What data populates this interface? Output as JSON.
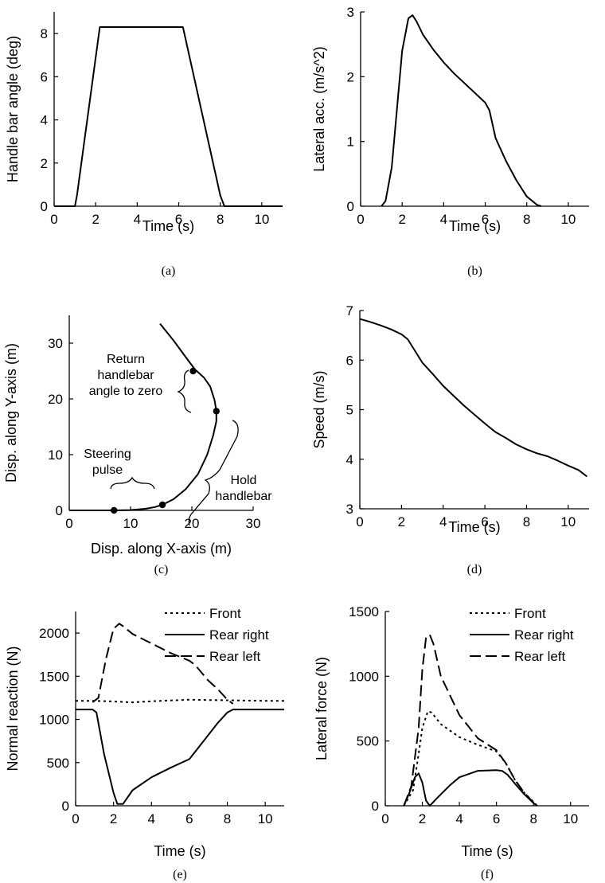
{
  "chart_data": [
    {
      "id": "a",
      "type": "line",
      "caption": "(a)",
      "xlabel": "Time (s)",
      "ylabel": "Handle bar angle (deg)",
      "xlim": [
        0,
        11
      ],
      "ylim": [
        0,
        9
      ],
      "xticks": [
        0,
        2,
        4,
        6,
        8,
        10
      ],
      "yticks": [
        0,
        2,
        4,
        6,
        8
      ],
      "series": [
        {
          "style": "solid",
          "x": [
            0,
            1.0,
            1.1,
            2.2,
            6.2,
            8.0,
            8.2,
            11
          ],
          "y": [
            0,
            0,
            0.5,
            8.3,
            8.3,
            0.5,
            0,
            0
          ]
        }
      ]
    },
    {
      "id": "b",
      "type": "line",
      "caption": "(b)",
      "xlabel": "Time (s)",
      "ylabel": "Lateral acc. (m/s^2)",
      "xlim": [
        0,
        11
      ],
      "ylim": [
        0,
        3
      ],
      "xticks": [
        0,
        2,
        4,
        6,
        8,
        10
      ],
      "yticks": [
        0,
        1,
        2,
        3
      ],
      "series": [
        {
          "style": "solid",
          "x": [
            1.0,
            1.2,
            1.5,
            2.0,
            2.3,
            2.5,
            2.7,
            3.0,
            3.5,
            4.0,
            4.5,
            5.0,
            5.5,
            6.0,
            6.2,
            6.5,
            7.0,
            7.5,
            8.0,
            8.5,
            8.7
          ],
          "y": [
            0,
            0.08,
            0.6,
            2.4,
            2.9,
            2.95,
            2.85,
            2.65,
            2.42,
            2.22,
            2.05,
            1.9,
            1.75,
            1.6,
            1.48,
            1.05,
            0.7,
            0.4,
            0.15,
            0.02,
            0
          ]
        }
      ]
    },
    {
      "id": "c",
      "type": "scatter",
      "caption": "(c)",
      "xlabel": "Disp. along X-axis (m)",
      "ylabel": "Disp. along Y-axis (m)",
      "xlim": [
        0,
        30
      ],
      "ylim": [
        0,
        35
      ],
      "xticks": [
        0,
        10,
        20,
        30
      ],
      "yticks": [
        0,
        10,
        20,
        30
      ],
      "series": [
        {
          "style": "solid",
          "x": [
            0,
            7.3,
            10,
            12.5,
            14,
            15.2,
            17,
            19,
            21,
            22.5,
            23.5,
            24,
            24,
            23.7,
            23,
            22,
            20.5,
            19,
            17,
            14.8
          ],
          "y": [
            0,
            0,
            0.05,
            0.3,
            0.6,
            1.0,
            2.0,
            3.8,
            6.5,
            10,
            13.5,
            16,
            17.8,
            19.8,
            22.2,
            23.8,
            25.3,
            27.5,
            30.5,
            33.5
          ]
        }
      ],
      "markers": [
        {
          "x": 7.3,
          "y": 0
        },
        {
          "x": 15.2,
          "y": 1.0
        },
        {
          "x": 24,
          "y": 17.8
        },
        {
          "x": 20.2,
          "y": 25
        }
      ],
      "annotations": [
        {
          "lines": [
            "Return",
            "handlebar",
            "angle to zero"
          ]
        },
        {
          "lines": [
            "Steering",
            "pulse"
          ]
        },
        {
          "lines": [
            "Hold",
            "handlebar"
          ]
        }
      ]
    },
    {
      "id": "d",
      "type": "line",
      "caption": "(d)",
      "xlabel": "Time (s)",
      "ylabel": "Speed (m/s)",
      "xlim": [
        0,
        11
      ],
      "ylim": [
        3,
        7
      ],
      "xticks": [
        0,
        2,
        4,
        6,
        8,
        10
      ],
      "yticks": [
        3,
        4,
        5,
        6,
        7
      ],
      "series": [
        {
          "style": "solid",
          "x": [
            0,
            0.5,
            1.0,
            1.5,
            2.0,
            2.3,
            2.7,
            3.0,
            3.5,
            4.0,
            4.5,
            5.0,
            5.5,
            6.0,
            6.5,
            7.0,
            7.5,
            8.0,
            8.5,
            9.0,
            9.5,
            10.0,
            10.5,
            10.9
          ],
          "y": [
            6.83,
            6.77,
            6.7,
            6.62,
            6.52,
            6.42,
            6.15,
            5.95,
            5.72,
            5.48,
            5.28,
            5.08,
            4.9,
            4.72,
            4.55,
            4.43,
            4.3,
            4.2,
            4.12,
            4.06,
            3.97,
            3.87,
            3.78,
            3.65
          ]
        }
      ]
    },
    {
      "id": "e",
      "type": "line",
      "caption": "(e)",
      "xlabel": "Time (s)",
      "ylabel": "Normal reaction (N)",
      "xlim": [
        0,
        11
      ],
      "ylim": [
        0,
        2250
      ],
      "xticks": [
        0,
        2,
        4,
        6,
        8,
        10
      ],
      "yticks": [
        0,
        500,
        1000,
        1500,
        2000
      ],
      "legend_position": "top-right",
      "series": [
        {
          "name": "Front",
          "style": "dotted",
          "x": [
            0,
            1.0,
            2.0,
            3.0,
            4.0,
            5.0,
            6.0,
            7.0,
            8.0,
            9.0,
            10.0,
            11.0
          ],
          "y": [
            1215,
            1215,
            1208,
            1198,
            1210,
            1220,
            1228,
            1225,
            1222,
            1218,
            1215,
            1215
          ]
        },
        {
          "name": "Rear right",
          "style": "solid",
          "x": [
            0,
            0.9,
            1.1,
            1.5,
            2.0,
            2.2,
            2.5,
            3.0,
            4.0,
            5.0,
            6.0,
            6.5,
            7.0,
            7.5,
            8.0,
            8.3,
            9.0,
            11.0
          ],
          "y": [
            1115,
            1115,
            1080,
            600,
            150,
            20,
            20,
            180,
            330,
            440,
            540,
            680,
            820,
            960,
            1080,
            1115,
            1115,
            1115
          ]
        },
        {
          "name": "Rear left",
          "style": "dashed",
          "x": [
            0.9,
            1.2,
            1.6,
            2.0,
            2.3,
            2.5,
            3.0,
            4.0,
            5.0,
            6.0,
            6.3,
            7.0,
            7.5,
            8.0,
            8.3
          ],
          "y": [
            1200,
            1250,
            1700,
            2050,
            2110,
            2080,
            1990,
            1880,
            1770,
            1680,
            1630,
            1450,
            1350,
            1230,
            1180
          ]
        }
      ]
    },
    {
      "id": "f",
      "type": "line",
      "caption": "(f)",
      "xlabel": "Time (s)",
      "ylabel": "Lateral force (N)",
      "xlim": [
        0,
        11
      ],
      "ylim": [
        0,
        1500
      ],
      "xticks": [
        0,
        2,
        4,
        6,
        8,
        10
      ],
      "yticks": [
        0,
        500,
        1000,
        1500
      ],
      "legend_position": "top-right",
      "series": [
        {
          "name": "Front",
          "style": "dotted",
          "x": [
            1.0,
            1.5,
            1.8,
            2.0,
            2.3,
            2.5,
            3.0,
            4.0,
            5.0,
            6.0,
            6.5,
            7.0,
            7.5,
            8.0,
            8.2
          ],
          "y": [
            0,
            120,
            400,
            600,
            730,
            720,
            630,
            530,
            470,
            420,
            330,
            200,
            100,
            30,
            0
          ]
        },
        {
          "name": "Rear right",
          "style": "solid",
          "x": [
            1.0,
            1.3,
            1.6,
            1.8,
            2.0,
            2.2,
            2.4,
            2.8,
            3.5,
            4.0,
            5.0,
            6.0,
            6.3,
            6.6,
            7.0,
            7.5,
            8.0,
            8.2
          ],
          "y": [
            0,
            100,
            220,
            250,
            180,
            40,
            0,
            60,
            160,
            220,
            270,
            275,
            270,
            240,
            170,
            90,
            20,
            0
          ]
        },
        {
          "name": "Rear left",
          "style": "dashed",
          "x": [
            1.0,
            1.4,
            1.8,
            2.0,
            2.2,
            2.4,
            2.6,
            3.0,
            4.0,
            5.0,
            6.0,
            6.5,
            7.0,
            7.5,
            8.0,
            8.2
          ],
          "y": [
            0,
            150,
            600,
            1050,
            1300,
            1320,
            1250,
            1000,
            700,
            520,
            430,
            330,
            200,
            100,
            25,
            0
          ]
        }
      ]
    }
  ]
}
